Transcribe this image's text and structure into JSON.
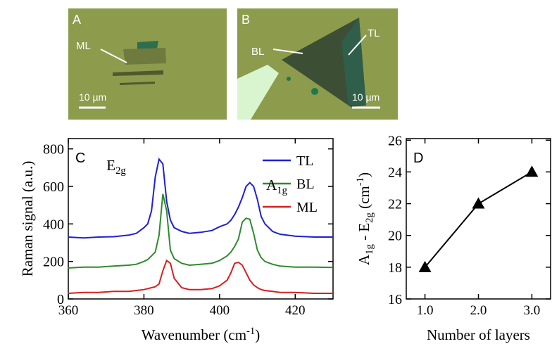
{
  "images": [
    {
      "label": "A",
      "annotations": [
        "ML"
      ],
      "scale_bar": "10 µm"
    },
    {
      "label": "B",
      "annotations": [
        "BL",
        "TL"
      ],
      "scale_bar": "10 µm"
    }
  ],
  "chart_data": [
    {
      "type": "line",
      "panel_label": "C",
      "y_label": "Raman signal (a.u.)",
      "x_label": [
        {
          "text": "Wavenumber (cm"
        },
        {
          "sup": "-1"
        },
        {
          "text": ")"
        }
      ],
      "annotations": [
        [
          {
            "text": "E"
          },
          {
            "sub": "2g"
          }
        ],
        [
          {
            "text": "A"
          },
          {
            "sub": "1g"
          }
        ]
      ],
      "legend": "upper right",
      "x": [
        360,
        364,
        368,
        372,
        376,
        378,
        380,
        381,
        382,
        383,
        384,
        385,
        386,
        387,
        388,
        390,
        392,
        395,
        398,
        400,
        402,
        403,
        404,
        405,
        406,
        407,
        408,
        409,
        410,
        411,
        412,
        414,
        416,
        420,
        425,
        430
      ],
      "series": [
        {
          "name": "TL",
          "color": "#1f1fd6",
          "values": [
            330,
            325,
            330,
            332,
            340,
            350,
            380,
            400,
            470,
            650,
            745,
            720,
            520,
            420,
            380,
            360,
            350,
            355,
            365,
            385,
            400,
            420,
            450,
            490,
            540,
            600,
            620,
            600,
            530,
            440,
            400,
            360,
            345,
            335,
            330,
            330
          ]
        },
        {
          "name": "BL",
          "color": "#2e8b2e",
          "values": [
            165,
            170,
            170,
            175,
            180,
            185,
            200,
            210,
            230,
            250,
            340,
            560,
            470,
            260,
            215,
            190,
            180,
            185,
            190,
            205,
            230,
            250,
            280,
            320,
            410,
            430,
            425,
            350,
            260,
            220,
            200,
            185,
            175,
            170,
            170,
            168
          ]
        },
        {
          "name": "ML",
          "color": "#d62020",
          "values": [
            30,
            35,
            35,
            40,
            40,
            45,
            50,
            55,
            60,
            65,
            80,
            150,
            205,
            190,
            110,
            60,
            50,
            50,
            55,
            70,
            100,
            140,
            190,
            195,
            180,
            140,
            100,
            75,
            60,
            50,
            45,
            40,
            35,
            35,
            30,
            30
          ]
        }
      ],
      "xlim": [
        360,
        430
      ],
      "xticks": [
        360,
        380,
        400,
        420
      ],
      "ylim": [
        0,
        855
      ],
      "yticks": [
        0,
        200,
        400,
        600,
        800
      ]
    },
    {
      "type": "line",
      "panel_label": "D",
      "y_label": [
        {
          "text": "A"
        },
        {
          "sub": "1g"
        },
        {
          "text": " - E"
        },
        {
          "sub": "2g"
        },
        {
          "text": " (cm"
        },
        {
          "sup": "-1"
        },
        {
          "text": ")"
        }
      ],
      "x_label": "Number of layers",
      "x": [
        1,
        2,
        3
      ],
      "series": [
        {
          "color": "#000000",
          "marker": "triangle",
          "values": [
            18,
            22,
            24
          ]
        }
      ],
      "xlim": [
        0.65,
        3.35
      ],
      "xticks": [
        {
          "value": 1,
          "label": "1.0"
        },
        {
          "value": 2,
          "label": "2.0"
        },
        {
          "value": 3,
          "label": "3.0"
        }
      ],
      "ylim": [
        16,
        26.1
      ],
      "yticks": [
        16,
        18,
        20,
        22,
        24,
        26
      ]
    }
  ]
}
